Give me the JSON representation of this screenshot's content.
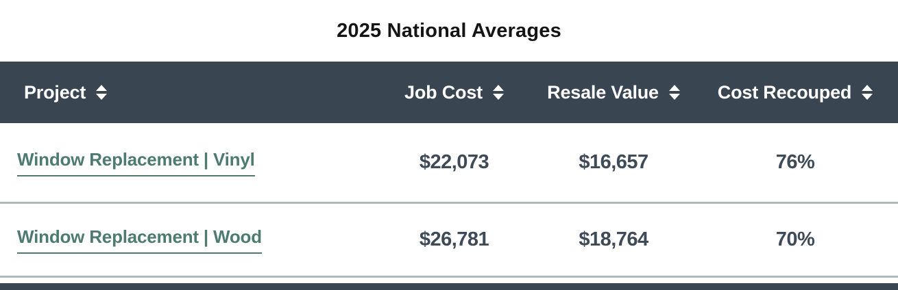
{
  "title": "2025 National Averages",
  "table": {
    "columns": [
      {
        "label": "Project",
        "sortable": true
      },
      {
        "label": "Job Cost",
        "sortable": true
      },
      {
        "label": "Resale Value",
        "sortable": true
      },
      {
        "label": "Cost Recouped",
        "sortable": true
      }
    ],
    "rows": [
      {
        "project": "Window Replacement | Vinyl",
        "job_cost": "$22,073",
        "resale_value": "$16,657",
        "cost_recouped": "76%"
      },
      {
        "project": "Window Replacement | Wood",
        "job_cost": "$26,781",
        "resale_value": "$18,764",
        "cost_recouped": "70%"
      }
    ]
  },
  "icons": {
    "sort": "sort-up-down-triangles"
  },
  "colors": {
    "header_bg": "#3a4552",
    "header_text": "#ffffff",
    "link_text": "#4e7b71",
    "value_text": "#3e4a57",
    "row_separator": "#b3b8b8",
    "bottom_bar": "#3a4552",
    "title_text": "#151515"
  },
  "chart_data": {
    "type": "table",
    "title": "2025 National Averages",
    "columns": [
      "Project",
      "Job Cost",
      "Resale Value",
      "Cost Recouped"
    ],
    "rows": [
      [
        "Window Replacement | Vinyl",
        "$22,073",
        "$16,657",
        "76%"
      ],
      [
        "Window Replacement | Wood",
        "$26,781",
        "$18,764",
        "70%"
      ]
    ],
    "sortable_columns": true,
    "legend": "none",
    "notes": "partial dark header bar of a following table visible at bottom edge"
  }
}
